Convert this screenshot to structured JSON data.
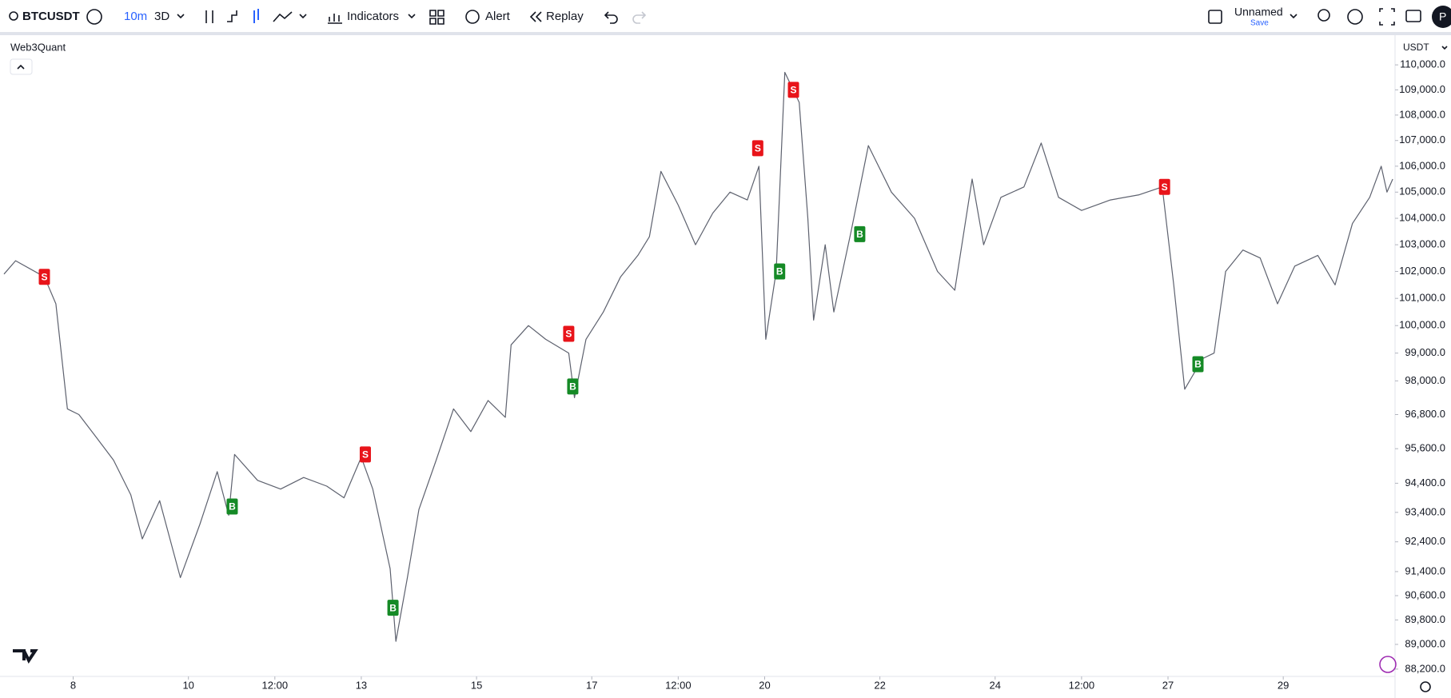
{
  "toolbar": {
    "symbol": "BTCUSDT",
    "interval": "10m",
    "range": "3D",
    "indicators": "Indicators",
    "alert": "Alert",
    "replay": "Replay",
    "layout_name": "Unnamed",
    "save": "Save",
    "avatar": "P"
  },
  "chart_data": {
    "type": "line",
    "title": "Web3Quant",
    "currency": "USDT",
    "color": "#5d616e",
    "log": true,
    "grid": false,
    "x": [
      6.8,
      7.0,
      7.5,
      7.7,
      7.9,
      8.1,
      8.4,
      8.7,
      9.0,
      9.2,
      9.5,
      9.86,
      10.2,
      10.5,
      10.7,
      10.8,
      11.2,
      11.6,
      12.0,
      12.4,
      12.7,
      13.0,
      13.2,
      13.5,
      13.6,
      13.8,
      14.0,
      14.3,
      14.6,
      14.9,
      15.2,
      15.5,
      15.6,
      15.9,
      16.2,
      16.6,
      16.7,
      16.9,
      17.2,
      17.5,
      17.8,
      18.0,
      18.2,
      18.5,
      18.8,
      19.1,
      19.4,
      19.7,
      19.9,
      20.02,
      20.2,
      20.35,
      20.6,
      20.75,
      20.85,
      21.05,
      21.2,
      21.5,
      21.8,
      22.2,
      22.6,
      23.0,
      23.3,
      23.6,
      23.8,
      24.1,
      24.5,
      24.8,
      25.1,
      25.5,
      26.0,
      26.5,
      26.9,
      27.1,
      27.29,
      27.6,
      27.8,
      28.0,
      28.3,
      28.6,
      28.9,
      29.2,
      29.6,
      29.9,
      30.2,
      30.5,
      30.7,
      30.8,
      30.9
    ],
    "values": [
      101900,
      102400,
      101800,
      100800,
      97000,
      96800,
      96000,
      95200,
      94000,
      92500,
      93800,
      91200,
      93000,
      94800,
      93300,
      95400,
      94500,
      94200,
      94600,
      94300,
      93900,
      95300,
      94200,
      91500,
      89100,
      91200,
      93500,
      95200,
      97000,
      96200,
      97300,
      96700,
      99300,
      100000,
      99500,
      99000,
      97400,
      99500,
      100500,
      101800,
      102600,
      103300,
      105800,
      104500,
      103000,
      104200,
      105000,
      104700,
      106000,
      99500,
      102000,
      109700,
      108500,
      104000,
      100200,
      103000,
      100500,
      103500,
      106800,
      105000,
      104000,
      102000,
      101300,
      105500,
      103000,
      104800,
      105200,
      106900,
      104800,
      104300,
      104700,
      104900,
      105200,
      101500,
      97700,
      98800,
      99000,
      102000,
      102800,
      102500,
      100800,
      102200,
      102600,
      101500,
      103800,
      104800,
      106000,
      105000,
      105500
    ],
    "xlim": [
      6.73,
      30.94
    ],
    "xticks": [
      8,
      10,
      {
        "value": 11.5,
        "label": "12:00"
      },
      13,
      15,
      17,
      {
        "value": 18.5,
        "label": "12:00"
      },
      20,
      22,
      24,
      {
        "value": 25.5,
        "label": "12:00"
      },
      27,
      29
    ],
    "ylim": [
      87990,
      111200
    ],
    "yticks": [
      {
        "value": 110000,
        "label": "110,000.0"
      },
      {
        "value": 109000,
        "label": "109,000.0"
      },
      {
        "value": 108000,
        "label": "108,000.0"
      },
      {
        "value": 107000,
        "label": "107,000.0"
      },
      {
        "value": 106000,
        "label": "106,000.0"
      },
      {
        "value": 105000,
        "label": "105,000.0"
      },
      {
        "value": 104000,
        "label": "104,000.0"
      },
      {
        "value": 103000,
        "label": "103,000.0"
      },
      {
        "value": 102000,
        "label": "102,000.0"
      },
      {
        "value": 101000,
        "label": "101,000.0"
      },
      {
        "value": 100000,
        "label": "100,000.0"
      },
      {
        "value": 99000,
        "label": "99,000.0"
      },
      {
        "value": 98000,
        "label": "98,000.0"
      },
      {
        "value": 96800,
        "label": "96,800.0"
      },
      {
        "value": 95600,
        "label": "95,600.0"
      },
      {
        "value": 94400,
        "label": "94,400.0"
      },
      {
        "value": 93400,
        "label": "93,400.0"
      },
      {
        "value": 92400,
        "label": "92,400.0"
      },
      {
        "value": 91400,
        "label": "91,400.0"
      },
      {
        "value": 90600,
        "label": "90,600.0"
      },
      {
        "value": 89800,
        "label": "89,800.0"
      },
      {
        "value": 89000,
        "label": "89,000.0"
      },
      {
        "value": 88200,
        "label": "88,200.0"
      }
    ],
    "signals": [
      {
        "x": 7.5,
        "value": 101800,
        "label": "S",
        "color": "#e8141a"
      },
      {
        "x": 13.07,
        "value": 95400,
        "label": "S",
        "color": "#e8141a"
      },
      {
        "x": 16.6,
        "value": 99700,
        "label": "S",
        "color": "#e8141a"
      },
      {
        "x": 19.88,
        "value": 106700,
        "label": "S",
        "color": "#e8141a"
      },
      {
        "x": 20.5,
        "value": 109000,
        "label": "S",
        "color": "#e8141a"
      },
      {
        "x": 26.94,
        "value": 105200,
        "label": "S",
        "color": "#e8141a"
      },
      {
        "x": 10.76,
        "value": 93600,
        "label": "B",
        "color": "#158a26"
      },
      {
        "x": 13.55,
        "value": 90200,
        "label": "B",
        "color": "#158a26"
      },
      {
        "x": 16.67,
        "value": 97800,
        "label": "B",
        "color": "#158a26"
      },
      {
        "x": 20.26,
        "value": 102000,
        "label": "B",
        "color": "#158a26"
      },
      {
        "x": 21.65,
        "value": 103400,
        "label": "B",
        "color": "#158a26"
      },
      {
        "x": 27.52,
        "value": 98600,
        "label": "B",
        "color": "#158a26"
      }
    ]
  }
}
